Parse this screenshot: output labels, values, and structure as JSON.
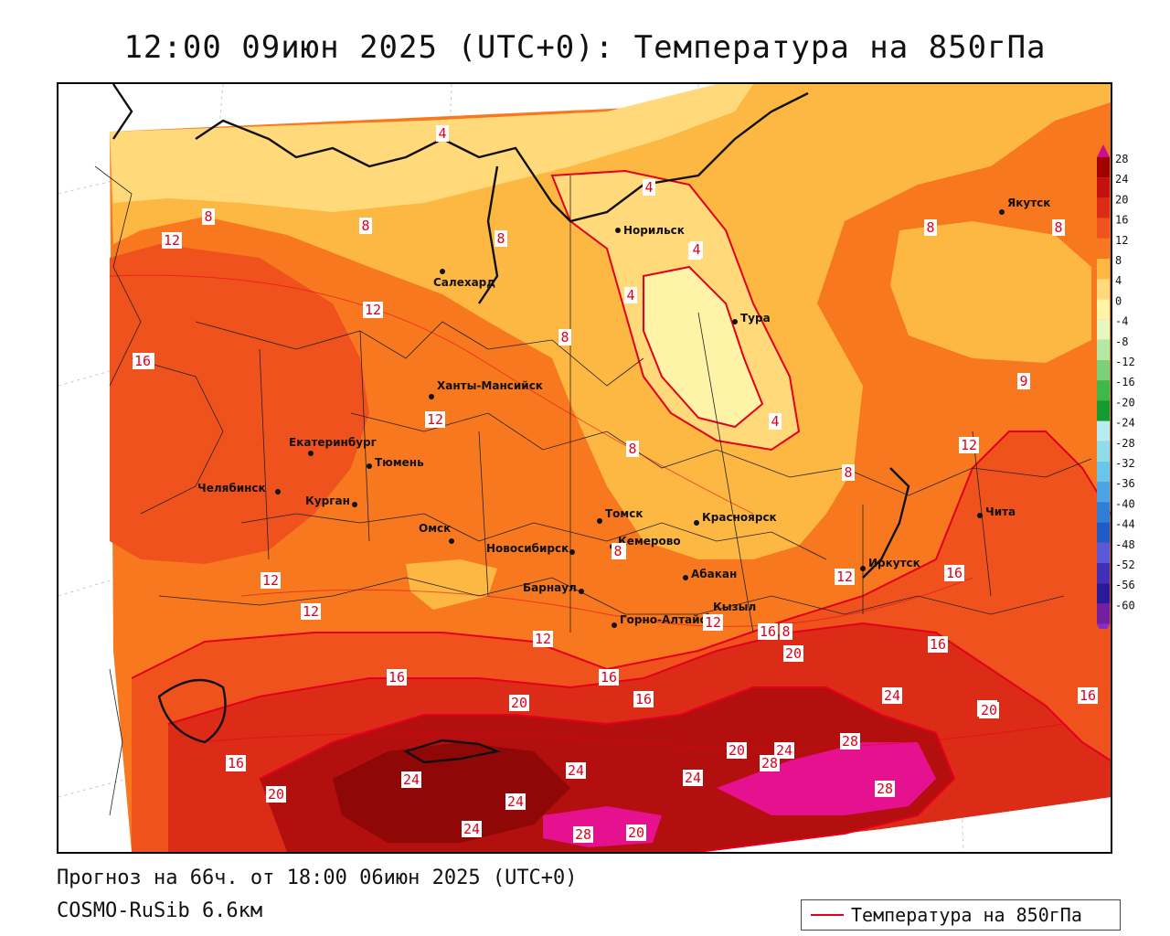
{
  "title": "12:00 09июн 2025 (UTC+0): Температура на 850гПа",
  "footer": {
    "forecast": "Прогноз на 66ч. от 18:00 06июн 2025 (UTC+0)",
    "model": "COSMO-RuSib 6.6км",
    "legend_label": "Температура на 850гПа"
  },
  "colors": {
    "isoline": "#e4001a",
    "c0": "#fff3a8",
    "c4": "#ffd97a",
    "c8": "#fdb843",
    "c12": "#f7781f",
    "c16": "#f0521e",
    "c20": "#dc2b17",
    "c24": "#b30f0f",
    "c28": "#8f0707",
    "c32": "#e5118e"
  },
  "colorbar": {
    "labels": [
      "28",
      "24",
      "20",
      "16",
      "12",
      "8",
      "4",
      "0",
      "-4",
      "-8",
      "-12",
      "-16",
      "-20",
      "-24",
      "-28",
      "-32",
      "-36",
      "-40",
      "-44",
      "-48",
      "-52",
      "-56",
      "-60"
    ],
    "colors": [
      "#a00000",
      "#c41010",
      "#de2b16",
      "#f0521e",
      "#f7781f",
      "#fdb843",
      "#ffd97a",
      "#fff3a8",
      "#e8f7c0",
      "#b6e8a5",
      "#7dd07a",
      "#3fb84a",
      "#129b2e",
      "#b6ecf2",
      "#8fdde8",
      "#66c6ec",
      "#4aa4e6",
      "#2f7ed8",
      "#1e5cc8",
      "#5a5ad8",
      "#4030b8",
      "#2a1a9a",
      "#7020a0"
    ]
  },
  "cities": [
    {
      "name": "Норильск"
    },
    {
      "name": "Якутск"
    },
    {
      "name": "Салехард"
    },
    {
      "name": "Тура"
    },
    {
      "name": "Ханты-Мансийск"
    },
    {
      "name": "Екатеринбург"
    },
    {
      "name": "Тюмень"
    },
    {
      "name": "Челябинск"
    },
    {
      "name": "Курган"
    },
    {
      "name": "Омск"
    },
    {
      "name": "Новосибирск"
    },
    {
      "name": "Томск"
    },
    {
      "name": "Кемерово"
    },
    {
      "name": "Красноярск"
    },
    {
      "name": "Абакан"
    },
    {
      "name": "Барнаул"
    },
    {
      "name": "Горно-Алтайск"
    },
    {
      "name": "Кызыл"
    },
    {
      "name": "Иркутск"
    },
    {
      "name": "Чита"
    }
  ],
  "isolabels": [
    "4",
    "4",
    "8",
    "8",
    "12",
    "8",
    "4",
    "4",
    "4",
    "8",
    "8",
    "12",
    "12",
    "16",
    "12",
    "8",
    "8",
    "8",
    "4",
    "8",
    "9",
    "12",
    "8",
    "12",
    "8",
    "8",
    "12",
    "12",
    "16",
    "12",
    "12",
    "16",
    "16",
    "16",
    "16",
    "16",
    "20",
    "20",
    "20",
    "24",
    "20",
    "16",
    "16",
    "20",
    "24",
    "24",
    "24",
    "24",
    "20",
    "24",
    "28",
    "28",
    "24",
    "28",
    "24",
    "28",
    "20",
    "16",
    "20"
  ]
}
